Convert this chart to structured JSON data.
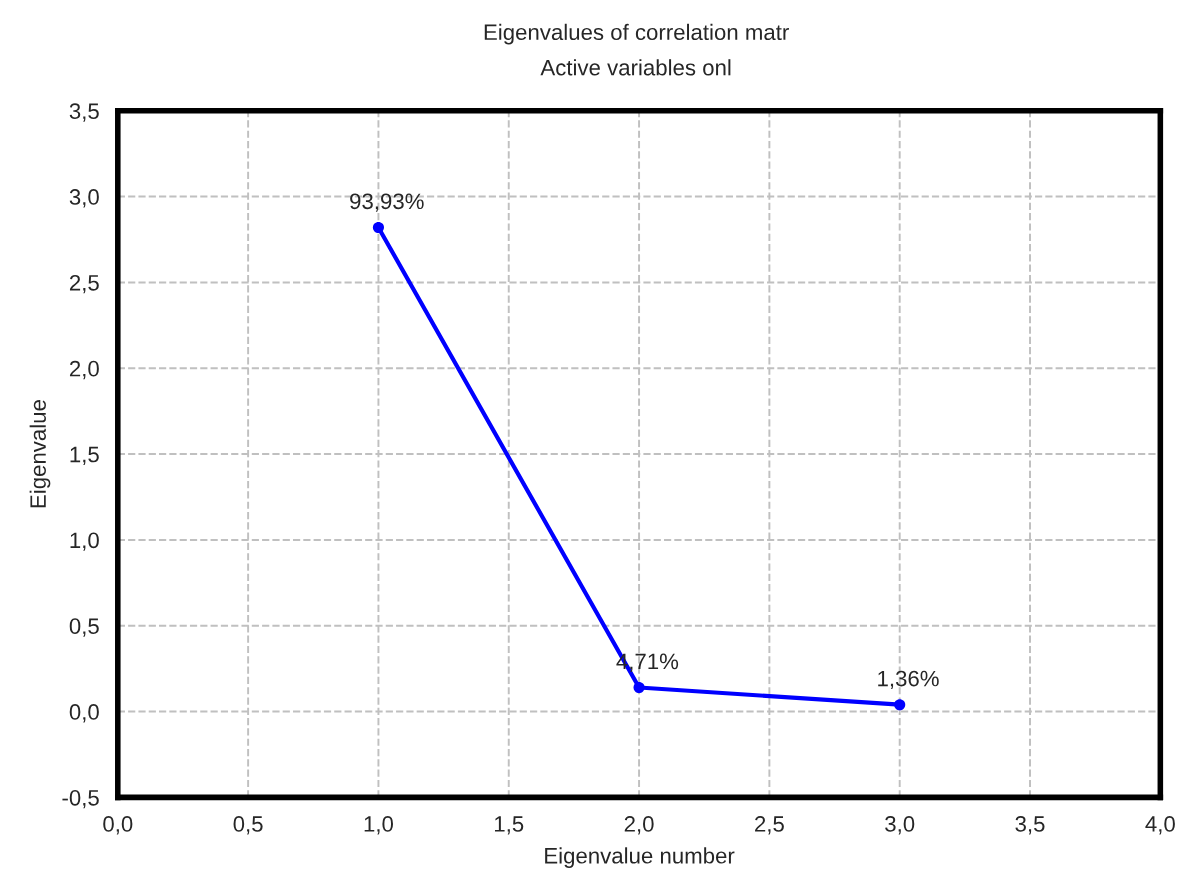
{
  "chart_data": {
    "type": "line",
    "title": "Eigenvalues of correlation matr",
    "subtitle": "Active variables onl",
    "xlabel": "Eigenvalue number",
    "ylabel": "Eigenvalue",
    "x": [
      1,
      2,
      3
    ],
    "series": [
      {
        "color": "#0000ff",
        "values": [
          2.82,
          0.14,
          0.04
        ]
      }
    ],
    "annotations": [
      {
        "text": "93,93%",
        "x": 1,
        "y": 2.82
      },
      {
        "text": "4,71%",
        "x": 2,
        "y": 0.14
      },
      {
        "text": "1,36%",
        "x": 3,
        "y": 0.04
      }
    ],
    "xlim": [
      0,
      4
    ],
    "ylim": [
      -0.5,
      3.5
    ],
    "xticks": [
      {
        "value": 0,
        "label": "0,0"
      },
      {
        "value": 0.5,
        "label": "0,5"
      },
      {
        "value": 1,
        "label": "1,0"
      },
      {
        "value": 1.5,
        "label": "1,5"
      },
      {
        "value": 2,
        "label": "2,0"
      },
      {
        "value": 2.5,
        "label": "2,5"
      },
      {
        "value": 3,
        "label": "3,0"
      },
      {
        "value": 3.5,
        "label": "3,5"
      },
      {
        "value": 4,
        "label": "4,0"
      }
    ],
    "yticks": [
      {
        "value": -0.5,
        "label": "-0,5"
      },
      {
        "value": 0,
        "label": "0,0"
      },
      {
        "value": 0.5,
        "label": "0,5"
      },
      {
        "value": 1,
        "label": "1,0"
      },
      {
        "value": 1.5,
        "label": "1,5"
      },
      {
        "value": 2,
        "label": "2,0"
      },
      {
        "value": 2.5,
        "label": "2,5"
      },
      {
        "value": 3,
        "label": "3,0"
      },
      {
        "value": 3.5,
        "label": "3,5"
      }
    ],
    "grid": true,
    "marker": "circle",
    "line_style": "solid",
    "legend": false
  }
}
